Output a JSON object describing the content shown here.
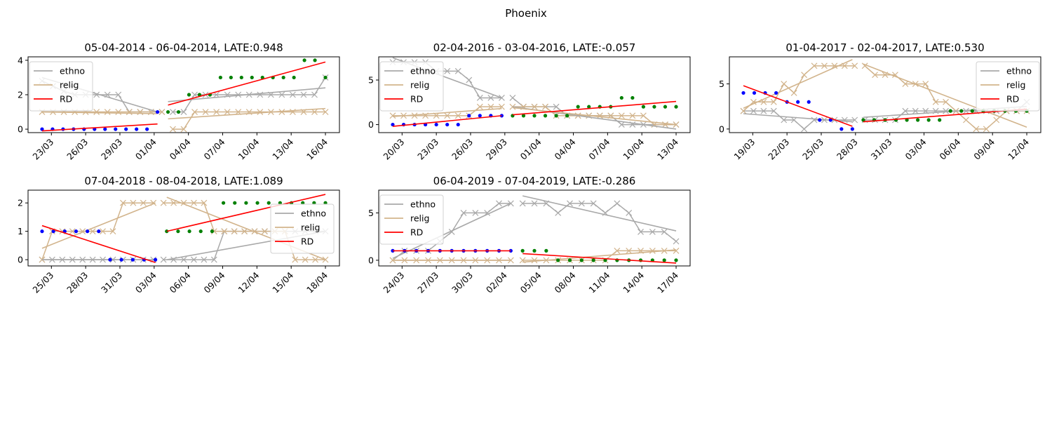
{
  "figure_title": "Phoenix",
  "colors": {
    "ethno": "#a9a9a9",
    "relig": "#d2b48c",
    "RD": "#ff0000",
    "before": "#0000ff",
    "after": "#008000"
  },
  "chart_data": [
    {
      "type": "line",
      "title": "05-04-2014 - 06-04-2014, LATE:0.948",
      "legend": [
        "ethno",
        "relig",
        "RD"
      ],
      "legend_loc": "upper-left",
      "x_start": "2014-03-21",
      "x_ticks": [
        "23/03",
        "26/03",
        "29/03",
        "01/04",
        "04/04",
        "07/04",
        "10/04",
        "13/04",
        "16/04"
      ],
      "y_ticks": [
        0,
        2,
        4
      ],
      "ylim": [
        -0.2,
        4.2
      ],
      "ethno": [
        2.8,
        2.5,
        2.2,
        2.0,
        2.0,
        2.0,
        2.0,
        2.0,
        1.0,
        1.0,
        1.0,
        1.0,
        1.0,
        1.0,
        2.0,
        2.0,
        2.0,
        2.0,
        2.0,
        2.0,
        2.0,
        2.0,
        2.0,
        2.0,
        2.0,
        2.0,
        3.0
      ],
      "relig": [
        1,
        1,
        1,
        1,
        1,
        1,
        1,
        1,
        1,
        1,
        1,
        1,
        0,
        0,
        1,
        1,
        1,
        1,
        1,
        1,
        1,
        1,
        1,
        1,
        1,
        1,
        1
      ],
      "scatter_before": [
        0,
        0,
        0,
        0,
        0,
        0,
        0,
        0,
        0,
        0,
        0,
        1
      ],
      "scatter_after": [
        1,
        1,
        2,
        2,
        2,
        3,
        3,
        3,
        3,
        3,
        3,
        3,
        3,
        4,
        4,
        3
      ],
      "trend": {
        "ethno_before": [
          3.0,
          1.0
        ],
        "ethno_after": [
          1.6,
          2.4
        ],
        "relig_before": [
          1.0,
          0.9
        ],
        "relig_after": [
          0.6,
          1.2
        ],
        "rd_before": [
          -0.1,
          0.3
        ],
        "rd_after": [
          1.4,
          3.9
        ]
      }
    },
    {
      "type": "line",
      "title": "02-04-2016 - 03-04-2016, LATE:-0.057",
      "legend": [
        "ethno",
        "relig",
        "RD"
      ],
      "legend_loc": "upper-left",
      "x_start": "2016-03-18",
      "x_ticks": [
        "20/03",
        "23/03",
        "26/03",
        "29/03",
        "01/04",
        "04/04",
        "07/04",
        "10/04",
        "13/04"
      ],
      "y_ticks": [
        0,
        5
      ],
      "ylim": [
        -0.9,
        7.6
      ],
      "ethno": [
        7,
        7,
        7,
        7,
        6,
        6,
        6,
        5,
        3,
        3,
        3,
        3,
        2,
        2,
        2,
        2,
        1,
        1,
        1,
        1,
        1,
        0,
        0,
        0,
        0,
        0,
        0
      ],
      "relig": [
        1,
        1,
        1,
        1,
        1,
        1,
        1,
        1,
        2,
        2,
        2,
        2,
        2,
        2,
        2,
        1,
        1,
        1,
        1,
        1,
        1,
        1,
        1,
        1,
        0,
        0,
        0
      ],
      "scatter_before": [
        0,
        0,
        0,
        0,
        0,
        0,
        0,
        1,
        1,
        1,
        1
      ],
      "scatter_after": [
        1,
        1,
        1,
        1,
        1,
        1,
        2,
        2,
        2,
        2,
        3,
        3,
        2,
        2,
        2,
        2
      ],
      "trend": {
        "ethno_before": [
          7.5,
          3.0
        ],
        "ethno_after": [
          2.0,
          -0.5
        ],
        "relig_before": [
          0.9,
          1.8
        ],
        "relig_after": [
          1.9,
          0.0
        ],
        "rd_before": [
          -0.2,
          1.0
        ],
        "rd_after": [
          1.1,
          2.6
        ]
      }
    },
    {
      "type": "line",
      "title": "01-04-2017 - 02-04-2017, LATE:0.530",
      "legend": [
        "ethno",
        "relig",
        "RD"
      ],
      "legend_loc": "upper-right",
      "x_start": "2017-03-17",
      "x_ticks": [
        "19/03",
        "22/03",
        "25/03",
        "28/03",
        "31/03",
        "03/04",
        "06/04",
        "09/04",
        "12/04"
      ],
      "y_ticks": [
        0,
        5
      ],
      "ylim": [
        -0.4,
        8.0
      ],
      "ethno": [
        2,
        2,
        2,
        2,
        1,
        1,
        0,
        1,
        1,
        1,
        1,
        1,
        1,
        1,
        1,
        1,
        2,
        2,
        2,
        2,
        2,
        2,
        2,
        2,
        2,
        2,
        2,
        2,
        3
      ],
      "relig": [
        2,
        3,
        3,
        3,
        5,
        4,
        6,
        7,
        7,
        7,
        7,
        7,
        7,
        6,
        6,
        6,
        5,
        5,
        5,
        3,
        3,
        2,
        1,
        0,
        0,
        1,
        2,
        2,
        2
      ],
      "scatter_before": [
        4,
        4,
        4,
        4,
        3,
        3,
        3,
        1,
        1,
        0,
        0
      ],
      "scatter_after": [
        1,
        1,
        1,
        1,
        1,
        1,
        1,
        1,
        2,
        2,
        2,
        2,
        2,
        2,
        2,
        2
      ],
      "trend": {
        "ethno_before": [
          1.7,
          0.8
        ],
        "ethno_after": [
          1.3,
          2.5
        ],
        "relig_before": [
          2.3,
          7.7
        ],
        "relig_after": [
          7.2,
          0.2
        ],
        "rd_before": [
          4.8,
          0.3
        ],
        "rd_after": [
          0.8,
          2.2
        ]
      }
    },
    {
      "type": "line",
      "title": "07-04-2018 - 08-04-2018, LATE:1.089",
      "legend": [
        "ethno",
        "relig",
        "RD"
      ],
      "legend_loc": "center-right",
      "x_start": "2018-03-23",
      "x_ticks": [
        "25/03",
        "28/03",
        "31/03",
        "03/04",
        "06/04",
        "09/04",
        "12/04",
        "15/04",
        "18/04"
      ],
      "y_ticks": [
        0,
        1,
        2
      ],
      "ylim": [
        -0.22,
        2.45
      ],
      "ethno": [
        0,
        0,
        0,
        0,
        0,
        0,
        0,
        0,
        0,
        0,
        0,
        0,
        0,
        0,
        0,
        0,
        0,
        0,
        1,
        1,
        1,
        1,
        1,
        1,
        1,
        1,
        1,
        1,
        1
      ],
      "relig": [
        0,
        1,
        1,
        1,
        1,
        1,
        1,
        1,
        2,
        2,
        2,
        2,
        2,
        2,
        2,
        2,
        2,
        1,
        1,
        1,
        1,
        1,
        1,
        1,
        1,
        0,
        0,
        0,
        0
      ],
      "scatter_before": [
        1,
        1,
        1,
        1,
        1,
        1,
        0,
        0,
        0,
        0,
        0
      ],
      "scatter_after": [
        1,
        1,
        1,
        1,
        1,
        2,
        2,
        2,
        2,
        2,
        2,
        2,
        2,
        2,
        2
      ],
      "trend": {
        "ethno_before": [
          0.0,
          0.0
        ],
        "ethno_after": [
          0.0,
          1.0
        ],
        "relig_before": [
          0.4,
          2.0
        ],
        "relig_after": [
          2.2,
          0.0
        ],
        "rd_before": [
          1.2,
          -0.1
        ],
        "rd_after": [
          1.0,
          2.3
        ]
      }
    },
    {
      "type": "line",
      "title": "06-04-2019 - 07-04-2019, LATE:-0.286",
      "legend": [
        "ethno",
        "relig",
        "RD"
      ],
      "legend_loc": "upper-left",
      "x_start": "2019-03-22",
      "x_ticks": [
        "24/03",
        "27/03",
        "30/03",
        "02/04",
        "05/04",
        "08/04",
        "11/04",
        "14/04",
        "17/04"
      ],
      "y_ticks": [
        0,
        5
      ],
      "ylim": [
        -0.6,
        7.4
      ],
      "ethno": [
        0,
        1,
        1,
        1,
        2,
        3,
        5,
        5,
        5,
        6,
        6,
        6,
        6,
        6,
        5,
        6,
        6,
        6,
        5,
        6,
        5,
        3,
        3,
        3,
        2
      ],
      "relig": [
        0,
        0,
        0,
        0,
        0,
        0,
        0,
        0,
        0,
        0,
        0,
        0,
        0,
        0,
        0,
        0,
        0,
        0,
        0,
        1,
        1,
        1,
        1,
        1,
        1
      ],
      "scatter_before": [
        1,
        1,
        1,
        1,
        1,
        1,
        1,
        1,
        1,
        1,
        1
      ],
      "scatter_after": [
        1,
        1,
        1,
        0,
        0,
        0,
        0,
        0,
        0,
        0,
        0,
        0,
        0,
        0
      ],
      "trend": {
        "ethno_before": [
          0.2,
          6.0
        ],
        "ethno_after": [
          6.8,
          3.1
        ],
        "relig_before": [
          0.0,
          0.0
        ],
        "relig_after": [
          -0.2,
          1.1
        ],
        "rd_before": [
          1.0,
          1.0
        ],
        "rd_after": [
          0.7,
          -0.3
        ]
      }
    }
  ]
}
